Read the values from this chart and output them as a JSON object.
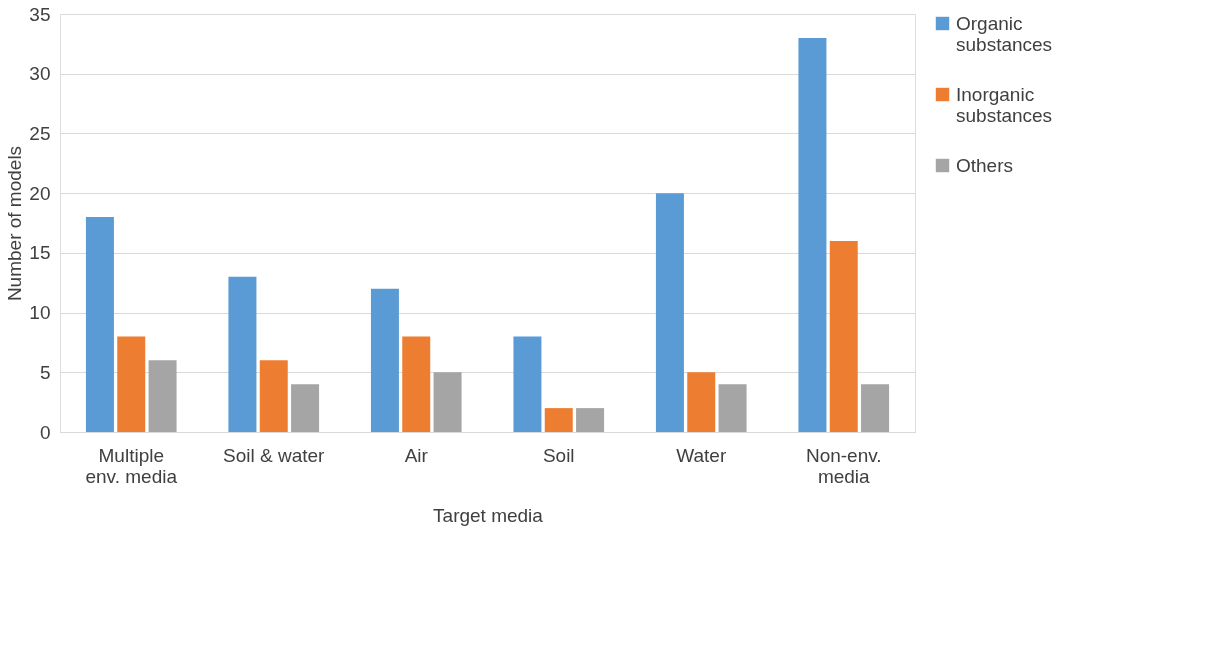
{
  "chart_data": {
    "type": "bar",
    "xlabel": "Target media",
    "ylabel": "Number of models",
    "categories": [
      "Multiple env. media",
      "Soil & water",
      "Air",
      "Soil",
      "Water",
      "Non-env. media"
    ],
    "series": [
      {
        "name": "Organic substances",
        "color": "#5b9bd5",
        "values": [
          18,
          13,
          12,
          8,
          20,
          33
        ]
      },
      {
        "name": "Inorganic substances",
        "color": "#ed7d31",
        "values": [
          8,
          6,
          8,
          2,
          5,
          16
        ]
      },
      {
        "name": "Others",
        "color": "#a5a5a5",
        "values": [
          6,
          4,
          5,
          2,
          4,
          4
        ]
      }
    ],
    "ylim": [
      0,
      35
    ],
    "yticks": [
      0,
      5,
      10,
      15,
      20,
      25,
      30,
      35
    ],
    "grid": "y",
    "legend": "right"
  }
}
